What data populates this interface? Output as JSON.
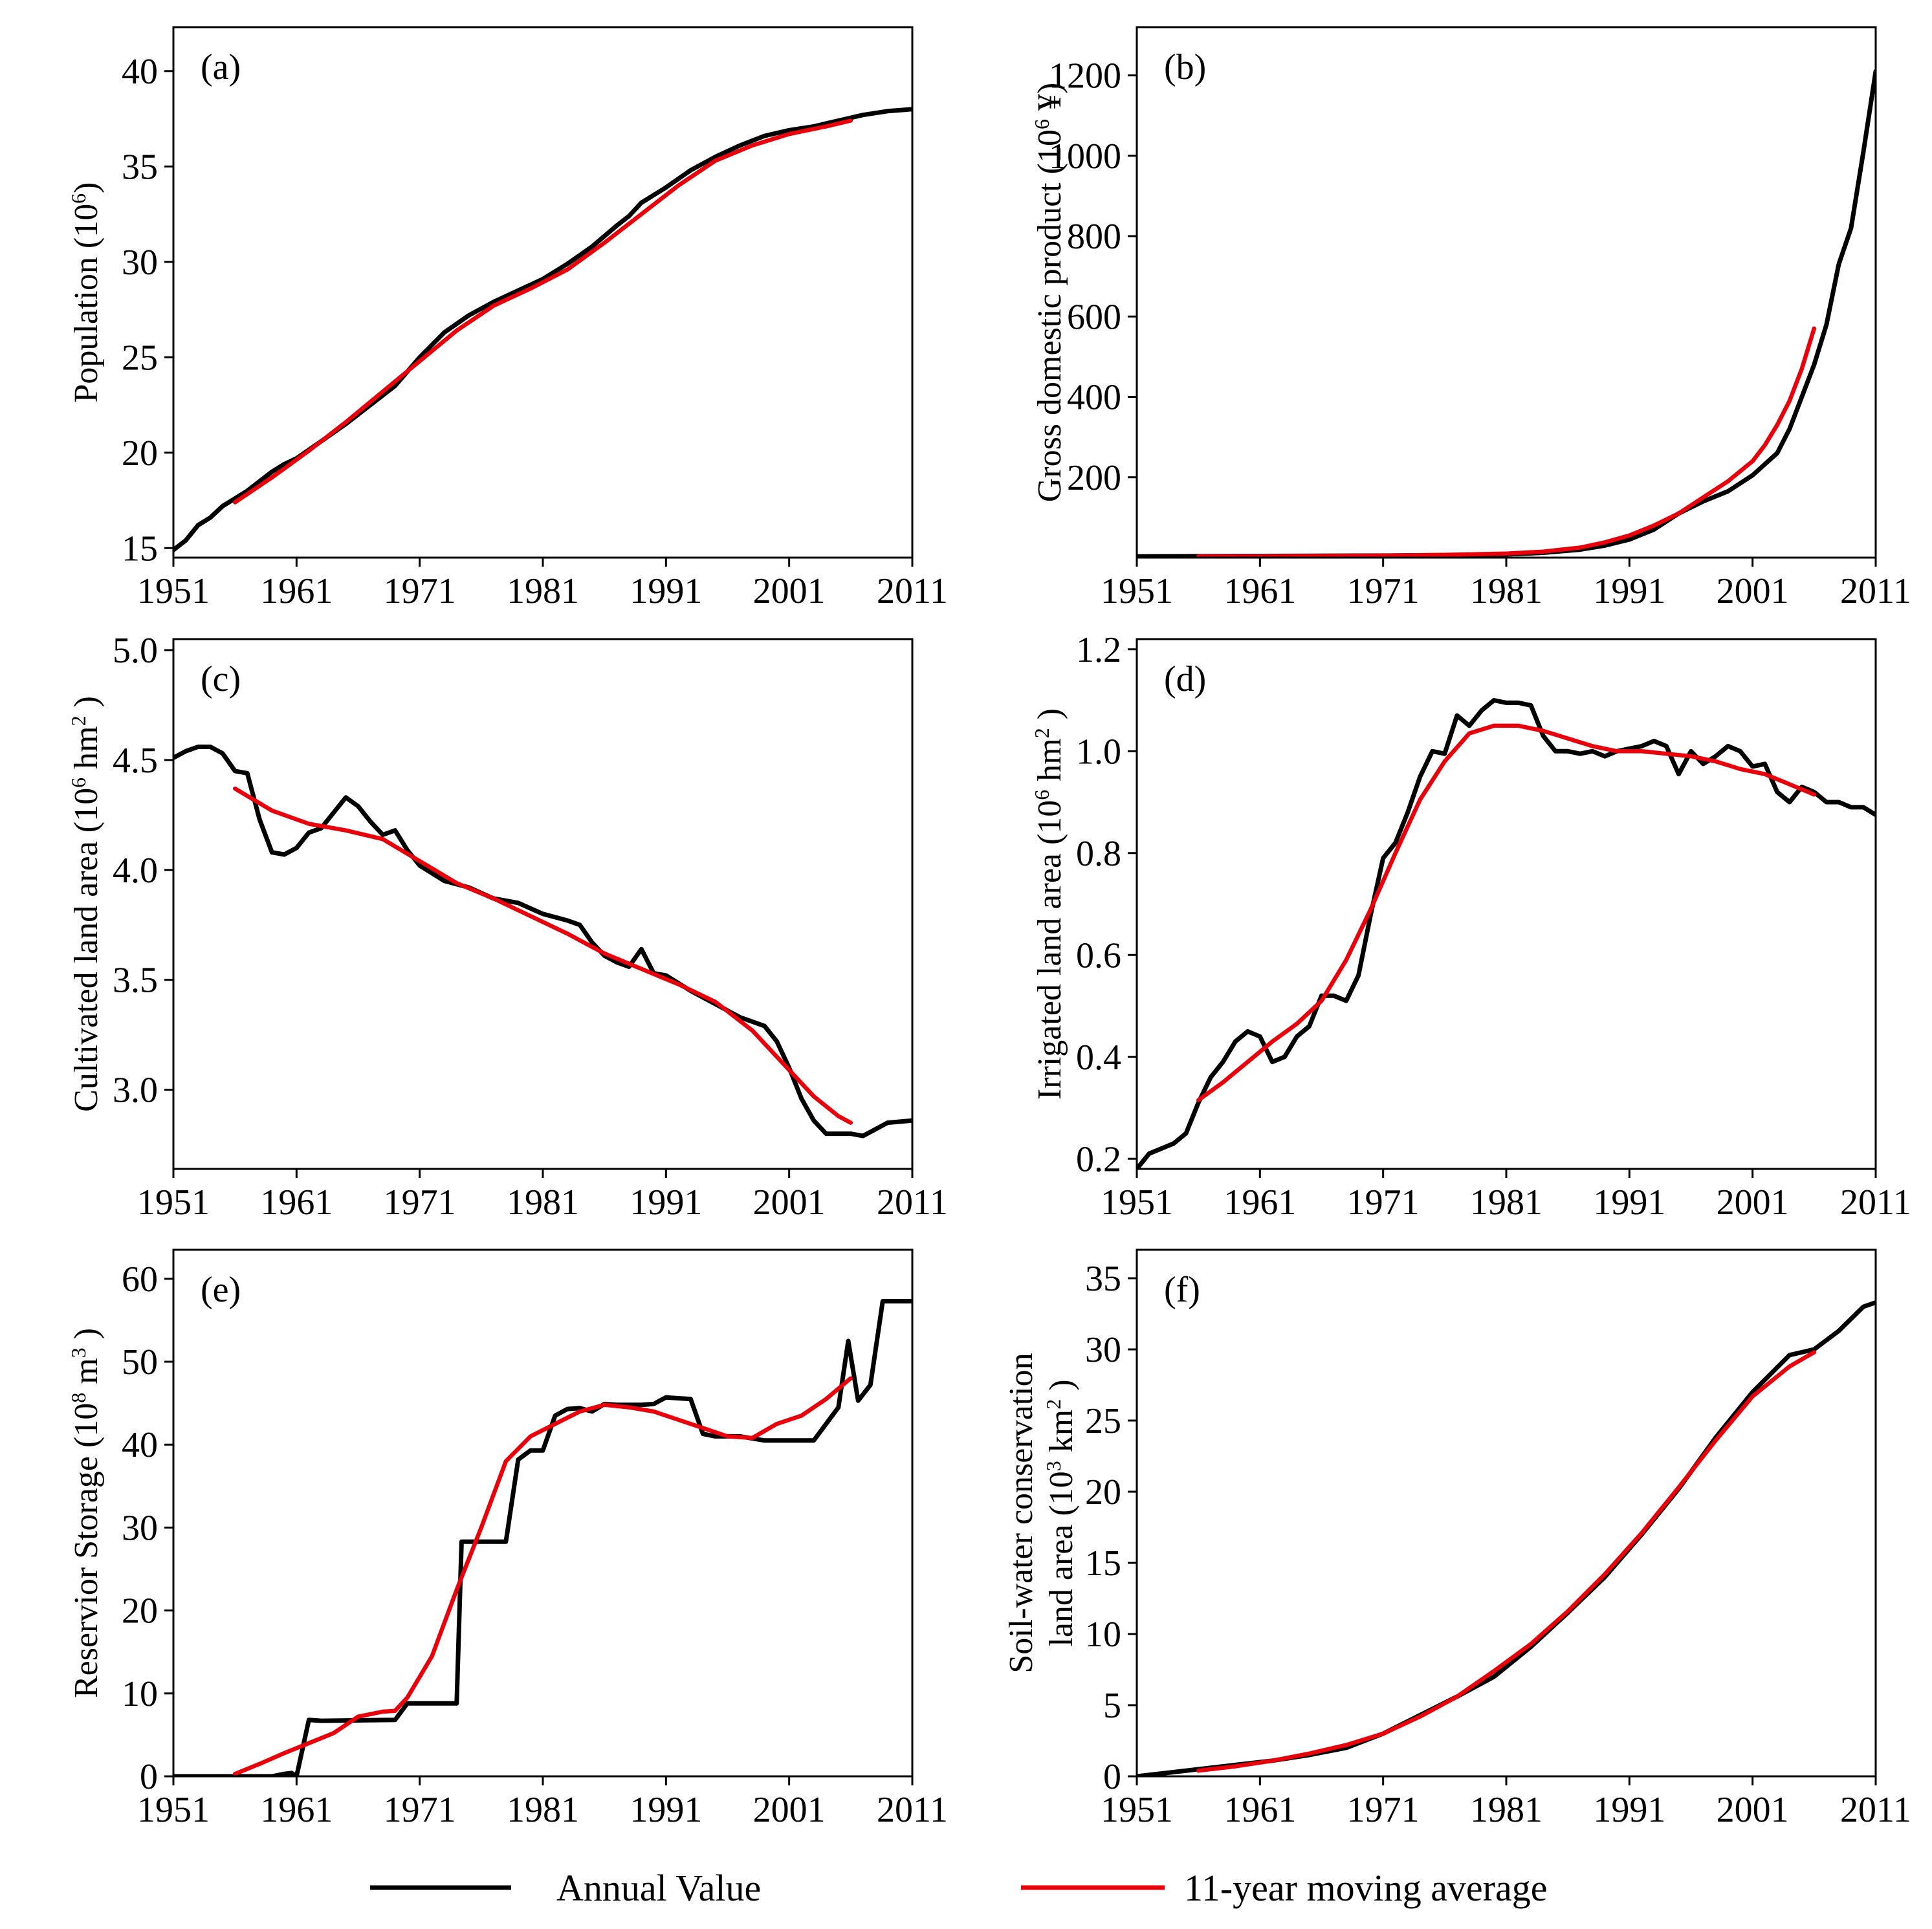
{
  "figure": {
    "legend": {
      "placement": "bottom-center",
      "entries": [
        {
          "label": "Annual Value",
          "color": "#000000"
        },
        {
          "label": "11-year moving average",
          "color": "#e8000b"
        }
      ]
    }
  },
  "chart_data": [
    {
      "type": "line",
      "panel_label": "(a)",
      "ylabel_main": "Population (10",
      "ylabel_sup": "6",
      "ylabel_tail": ")",
      "xlim": [
        1951,
        2011
      ],
      "ylim": [
        14.5,
        42.3
      ],
      "xticks": [
        1951,
        1961,
        1971,
        1981,
        1991,
        2001,
        2011
      ],
      "yticks": [
        15,
        20,
        25,
        30,
        35,
        40
      ],
      "series": [
        {
          "name": "Annual Value",
          "color": "#000000",
          "x": [
            1951,
            1952,
            1953,
            1954,
            1955,
            1956,
            1957,
            1958,
            1959,
            1960,
            1961,
            1963,
            1965,
            1967,
            1969,
            1971,
            1973,
            1975,
            1977,
            1979,
            1981,
            1983,
            1985,
            1987,
            1988,
            1989,
            1991,
            1993,
            1995,
            1997,
            1999,
            2001,
            2003,
            2005,
            2007,
            2009,
            2011
          ],
          "y": [
            14.9,
            15.4,
            16.2,
            16.6,
            17.2,
            17.6,
            18.0,
            18.5,
            19.0,
            19.4,
            19.7,
            20.6,
            21.5,
            22.5,
            23.5,
            25.0,
            26.3,
            27.2,
            27.9,
            28.5,
            29.1,
            29.9,
            30.8,
            31.9,
            32.4,
            33.1,
            33.9,
            34.8,
            35.5,
            36.1,
            36.6,
            36.9,
            37.1,
            37.4,
            37.7,
            37.9,
            38.0
          ]
        },
        {
          "name": "11-year moving average",
          "color": "#e8000b",
          "x": [
            1956,
            1959,
            1962,
            1965,
            1968,
            1971,
            1974,
            1977,
            1980,
            1983,
            1986,
            1989,
            1992,
            1995,
            1998,
            2001,
            2004,
            2006
          ],
          "y": [
            17.4,
            18.7,
            20.1,
            21.6,
            23.2,
            24.8,
            26.4,
            27.7,
            28.6,
            29.6,
            31.0,
            32.5,
            34.0,
            35.3,
            36.1,
            36.7,
            37.1,
            37.4
          ]
        }
      ]
    },
    {
      "type": "line",
      "panel_label": "(b)",
      "ylabel_main": "Gross domestic product (10",
      "ylabel_sup": "6",
      "ylabel_tail": " ¥)",
      "xlim": [
        1951,
        2011
      ],
      "ylim": [
        0,
        1320
      ],
      "xticks": [
        1951,
        1961,
        1971,
        1981,
        1991,
        2001,
        2011
      ],
      "yticks": [
        200,
        400,
        600,
        800,
        1000,
        1200
      ],
      "series": [
        {
          "name": "Annual Value",
          "color": "#000000",
          "x": [
            1951,
            1961,
            1971,
            1976,
            1981,
            1984,
            1987,
            1989,
            1991,
            1993,
            1995,
            1997,
            1999,
            2001,
            2003,
            2004,
            2005,
            2006,
            2007,
            2008,
            2009,
            2010,
            2011
          ],
          "y": [
            3,
            4,
            5,
            6,
            8,
            12,
            20,
            30,
            45,
            70,
            110,
            140,
            165,
            205,
            260,
            320,
            400,
            480,
            580,
            730,
            820,
            1010,
            1210
          ]
        },
        {
          "name": "11-year moving average",
          "color": "#e8000b",
          "x": [
            1956,
            1961,
            1966,
            1971,
            1976,
            1981,
            1984,
            1987,
            1989,
            1991,
            1993,
            1995,
            1997,
            1999,
            2001,
            2002,
            2003,
            2004,
            2005,
            2006
          ],
          "y": [
            3,
            3,
            4,
            5,
            7,
            10,
            15,
            25,
            38,
            55,
            80,
            110,
            150,
            190,
            240,
            280,
            330,
            390,
            470,
            570
          ]
        }
      ]
    },
    {
      "type": "line",
      "panel_label": "(c)",
      "ylabel_main": "Cultivated land area (10",
      "ylabel_sup": "6",
      "ylabel_tail": " hm",
      "ylabel_sup2": "2",
      "ylabel_tail2": " )",
      "xlim": [
        1951,
        2011
      ],
      "ylim": [
        2.64,
        5.05
      ],
      "xticks": [
        1951,
        1961,
        1971,
        1981,
        1991,
        2001,
        2011
      ],
      "yticks": [
        3.0,
        3.5,
        4.0,
        4.5,
        5.0
      ],
      "series": [
        {
          "name": "Annual Value",
          "color": "#000000",
          "x": [
            1951,
            1952,
            1953,
            1954,
            1955,
            1956,
            1957,
            1958,
            1959,
            1960,
            1961,
            1962,
            1963,
            1964,
            1965,
            1966,
            1967,
            1968,
            1969,
            1970,
            1971,
            1973,
            1975,
            1977,
            1979,
            1981,
            1983,
            1984,
            1985,
            1986,
            1987,
            1988,
            1989,
            1990,
            1991,
            1993,
            1995,
            1997,
            1999,
            2000,
            2001,
            2002,
            2003,
            2004,
            2005,
            2006,
            2007,
            2009,
            2011
          ],
          "y": [
            4.51,
            4.54,
            4.56,
            4.56,
            4.53,
            4.45,
            4.44,
            4.23,
            4.08,
            4.07,
            4.1,
            4.17,
            4.19,
            4.26,
            4.33,
            4.29,
            4.22,
            4.16,
            4.18,
            4.09,
            4.02,
            3.95,
            3.92,
            3.87,
            3.85,
            3.8,
            3.77,
            3.75,
            3.67,
            3.61,
            3.58,
            3.56,
            3.64,
            3.53,
            3.52,
            3.45,
            3.39,
            3.33,
            3.29,
            3.22,
            3.1,
            2.96,
            2.86,
            2.8,
            2.8,
            2.8,
            2.79,
            2.85,
            2.86
          ]
        },
        {
          "name": "11-year moving average",
          "color": "#e8000b",
          "x": [
            1956,
            1959,
            1962,
            1965,
            1968,
            1971,
            1974,
            1977,
            1980,
            1983,
            1986,
            1989,
            1992,
            1995,
            1998,
            2001,
            2003,
            2005,
            2006
          ],
          "y": [
            4.37,
            4.27,
            4.21,
            4.18,
            4.14,
            4.04,
            3.94,
            3.87,
            3.79,
            3.71,
            3.62,
            3.55,
            3.48,
            3.4,
            3.27,
            3.09,
            2.97,
            2.88,
            2.85
          ]
        }
      ]
    },
    {
      "type": "line",
      "panel_label": "(d)",
      "ylabel_main": "Irrigated land area (10",
      "ylabel_sup": "6",
      "ylabel_tail": " hm",
      "ylabel_sup2": "2",
      "ylabel_tail2": " )",
      "xlim": [
        1951,
        2011
      ],
      "ylim": [
        0.18,
        1.22
      ],
      "xticks": [
        1951,
        1961,
        1971,
        1981,
        1991,
        2001,
        2011
      ],
      "yticks": [
        0.2,
        0.4,
        0.6,
        0.8,
        1.0,
        1.2
      ],
      "series": [
        {
          "name": "Annual Value",
          "color": "#000000",
          "x": [
            1951,
            1952,
            1953,
            1954,
            1955,
            1956,
            1957,
            1958,
            1959,
            1960,
            1961,
            1962,
            1963,
            1964,
            1965,
            1966,
            1967,
            1968,
            1969,
            1970,
            1971,
            1972,
            1973,
            1974,
            1975,
            1976,
            1977,
            1978,
            1979,
            1980,
            1981,
            1982,
            1983,
            1984,
            1985,
            1986,
            1987,
            1988,
            1989,
            1990,
            1991,
            1992,
            1993,
            1994,
            1995,
            1996,
            1997,
            1998,
            1999,
            2000,
            2001,
            2002,
            2003,
            2004,
            2005,
            2006,
            2007,
            2008,
            2009,
            2010,
            2011
          ],
          "y": [
            0.18,
            0.21,
            0.22,
            0.23,
            0.25,
            0.31,
            0.36,
            0.39,
            0.43,
            0.45,
            0.44,
            0.39,
            0.4,
            0.44,
            0.46,
            0.52,
            0.52,
            0.51,
            0.56,
            0.68,
            0.79,
            0.82,
            0.88,
            0.95,
            1.0,
            0.995,
            1.07,
            1.05,
            1.08,
            1.1,
            1.095,
            1.095,
            1.09,
            1.03,
            1.0,
            1.0,
            0.995,
            1.0,
            0.99,
            1.0,
            1.005,
            1.01,
            1.02,
            1.01,
            0.955,
            1.0,
            0.975,
            0.99,
            1.01,
            1.0,
            0.97,
            0.975,
            0.92,
            0.9,
            0.93,
            0.92,
            0.9,
            0.9,
            0.89,
            0.89,
            0.875
          ]
        },
        {
          "name": "11-year moving average",
          "color": "#e8000b",
          "x": [
            1956,
            1958,
            1960,
            1962,
            1964,
            1966,
            1968,
            1970,
            1972,
            1974,
            1976,
            1978,
            1980,
            1982,
            1984,
            1986,
            1988,
            1990,
            1992,
            1994,
            1996,
            1998,
            2000,
            2002,
            2004,
            2006
          ],
          "y": [
            0.315,
            0.35,
            0.39,
            0.43,
            0.465,
            0.51,
            0.59,
            0.69,
            0.8,
            0.905,
            0.98,
            1.035,
            1.05,
            1.05,
            1.04,
            1.025,
            1.01,
            1.0,
            1.0,
            0.995,
            0.99,
            0.98,
            0.965,
            0.955,
            0.935,
            0.915
          ]
        }
      ]
    },
    {
      "type": "line",
      "panel_label": "(e)",
      "ylabel_main": "Reservior Storage (10",
      "ylabel_sup": "8",
      "ylabel_tail": " m",
      "ylabel_sup2": "3",
      "ylabel_tail2": " )",
      "xlim": [
        1951,
        2011
      ],
      "ylim": [
        0,
        63.5
      ],
      "xticks": [
        1951,
        1961,
        1971,
        1981,
        1991,
        2001,
        2011
      ],
      "yticks": [
        0,
        10,
        20,
        30,
        40,
        50,
        60
      ],
      "series": [
        {
          "name": "Annual Value",
          "color": "#000000",
          "x": [
            1951,
            1959,
            1960,
            1960.6,
            1961,
            1962,
            1963,
            1969,
            1970,
            1974,
            1974.4,
            1976,
            1978,
            1979,
            1980,
            1981,
            1982,
            1983,
            1984,
            1985,
            1986,
            1987,
            1988,
            1989,
            1990,
            1991,
            1993,
            1994,
            1995,
            1997,
            1999,
            2001,
            2003,
            2005,
            2005.8,
            2006.6,
            2007.6,
            2008.6,
            2011
          ],
          "y": [
            0,
            0,
            0.3,
            0.4,
            0,
            6.8,
            6.7,
            6.8,
            8.8,
            8.8,
            28.3,
            28.3,
            28.3,
            38.2,
            39.3,
            39.3,
            43.5,
            44.3,
            44.4,
            44.0,
            44.9,
            44.8,
            44.8,
            44.8,
            44.9,
            45.7,
            45.5,
            41.3,
            41.0,
            41.0,
            40.5,
            40.5,
            40.5,
            44.5,
            52.5,
            45.3,
            47.2,
            57.3,
            57.3
          ]
        },
        {
          "name": "11-year moving average",
          "color": "#e8000b",
          "x": [
            1956,
            1958,
            1960,
            1962,
            1964,
            1966,
            1968,
            1969,
            1970,
            1972,
            1974,
            1976,
            1978,
            1980,
            1982,
            1984,
            1986,
            1988,
            1990,
            1992,
            1994,
            1996,
            1998,
            2000,
            2002,
            2004,
            2006
          ],
          "y": [
            0.3,
            1.5,
            2.8,
            4.0,
            5.2,
            7.2,
            7.8,
            7.9,
            9.5,
            14.5,
            22.5,
            30.0,
            38.0,
            41.0,
            42.5,
            44.0,
            44.8,
            44.5,
            44.0,
            43.0,
            42.0,
            41.0,
            40.8,
            42.5,
            43.5,
            45.5,
            48.0
          ]
        }
      ]
    },
    {
      "type": "line",
      "panel_label": "(f)",
      "ylabel_line1": "Soil-water conservation",
      "ylabel_main": "land area (10",
      "ylabel_sup": "3",
      "ylabel_tail": " km",
      "ylabel_sup2": "2",
      "ylabel_tail2": " )",
      "xlim": [
        1951,
        2011
      ],
      "ylim": [
        0,
        37
      ],
      "xticks": [
        1951,
        1961,
        1971,
        1981,
        1991,
        2001,
        2011
      ],
      "yticks": [
        0,
        5,
        10,
        15,
        20,
        25,
        30,
        35
      ],
      "series": [
        {
          "name": "Annual Value",
          "color": "#000000",
          "x": [
            1951,
            1953,
            1956,
            1959,
            1962,
            1965,
            1968,
            1971,
            1974,
            1977,
            1980,
            1983,
            1986,
            1989,
            1992,
            1995,
            1998,
            2001,
            2004,
            2006,
            2008,
            2010,
            2011
          ],
          "y": [
            0,
            0.2,
            0.5,
            0.8,
            1.1,
            1.5,
            2.0,
            3.0,
            4.3,
            5.6,
            7.0,
            9.1,
            11.5,
            14.0,
            17.0,
            20.2,
            23.8,
            27.0,
            29.6,
            30.0,
            31.3,
            33.0,
            33.3
          ]
        },
        {
          "name": "11-year moving average",
          "color": "#e8000b",
          "x": [
            1956,
            1959,
            1962,
            1965,
            1968,
            1971,
            1974,
            1977,
            1980,
            1983,
            1986,
            1989,
            1992,
            1995,
            1998,
            2001,
            2004,
            2006
          ],
          "y": [
            0.4,
            0.7,
            1.1,
            1.6,
            2.2,
            3.0,
            4.2,
            5.6,
            7.4,
            9.3,
            11.6,
            14.2,
            17.1,
            20.3,
            23.6,
            26.7,
            28.8,
            29.8
          ]
        }
      ]
    }
  ]
}
